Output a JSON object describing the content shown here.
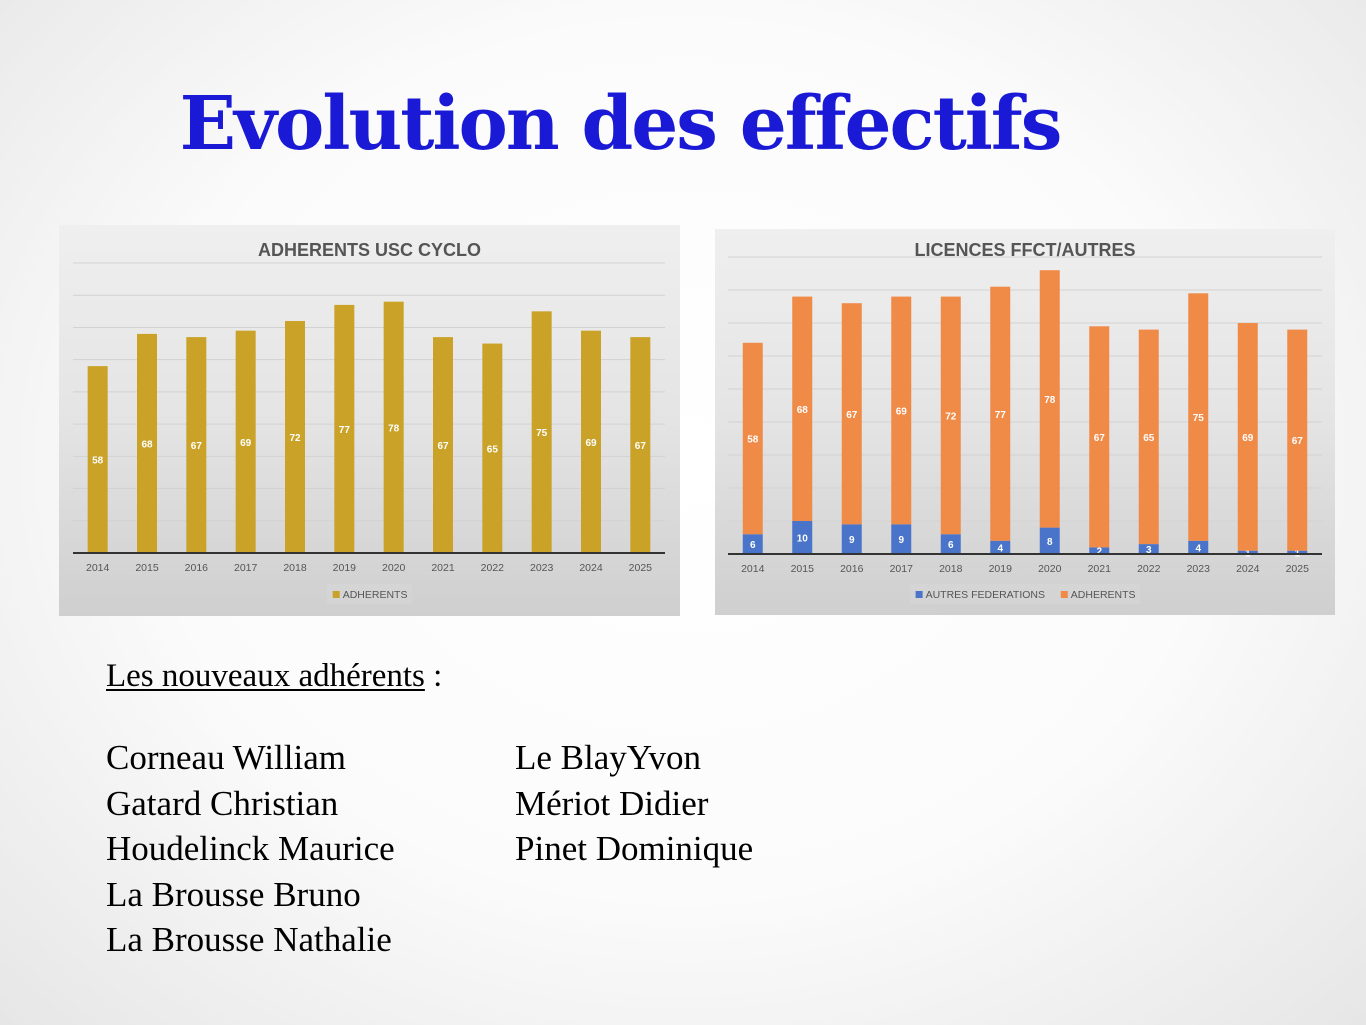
{
  "slide": {
    "title": "Evolution des effectifs"
  },
  "colors": {
    "title": "#1a1ad6",
    "adherents_gold": "#c9a227",
    "adherents_orange": "#f08a47",
    "autres_blue": "#4a74c9"
  },
  "chart_data": [
    {
      "type": "bar",
      "title": "ADHERENTS USC CYCLO",
      "categories": [
        "2014",
        "2015",
        "2016",
        "2017",
        "2018",
        "2019",
        "2020",
        "2021",
        "2022",
        "2023",
        "2024",
        "2025"
      ],
      "series": [
        {
          "name": "ADHERENTS",
          "color": "#c9a227",
          "values": [
            58,
            68,
            67,
            69,
            72,
            77,
            78,
            67,
            65,
            75,
            69,
            67
          ]
        }
      ],
      "ylim": [
        0,
        90
      ],
      "grid": true,
      "legend": "bottom"
    },
    {
      "type": "bar",
      "stacked": true,
      "title": "LICENCES FFCT/AUTRES",
      "categories": [
        "2014",
        "2015",
        "2016",
        "2017",
        "2018",
        "2019",
        "2020",
        "2021",
        "2022",
        "2023",
        "2024",
        "2025"
      ],
      "series": [
        {
          "name": "AUTRES FEDERATIONS",
          "color": "#4a74c9",
          "values": [
            6,
            10,
            9,
            9,
            6,
            4,
            8,
            2,
            3,
            4,
            1,
            1
          ]
        },
        {
          "name": "ADHERENTS",
          "color": "#f08a47",
          "values": [
            58,
            68,
            67,
            69,
            72,
            77,
            78,
            67,
            65,
            75,
            69,
            67
          ]
        }
      ],
      "ylim": [
        0,
        90
      ],
      "grid": true,
      "legend": "bottom"
    }
  ],
  "new_members": {
    "heading": "Les nouveaux adhérents",
    "heading_suffix": " :",
    "left": [
      "Corneau William",
      "Gatard Christian",
      "Houdelinck Maurice",
      "La Brousse Bruno",
      "La Brousse Nathalie"
    ],
    "right": [
      "Le BlayYvon",
      "Mériot Didier",
      "Pinet Dominique"
    ]
  }
}
